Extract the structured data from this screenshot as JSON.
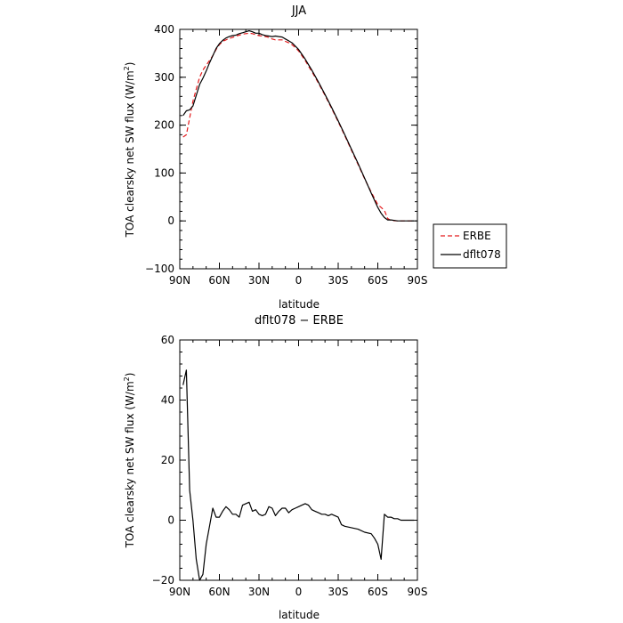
{
  "chart_data": [
    {
      "type": "line",
      "title": "JJA",
      "xlabel": "latitude",
      "ylabel": "TOA clearsky net SW flux (W/m²)",
      "ylabel_parts": {
        "main": "TOA clearsky net SW flux (W/m",
        "sup": "2",
        "close": ")"
      },
      "x_ticks": [
        "90N",
        "60N",
        "30N",
        "0",
        "30S",
        "60S",
        "90S"
      ],
      "y_ticks": [
        "−100",
        "0",
        "100",
        "200",
        "300",
        "400"
      ],
      "xlim": [
        90,
        -90
      ],
      "ylim": [
        -100,
        400
      ],
      "legend": {
        "placement": "right"
      },
      "series": [
        {
          "name": "ERBE",
          "color": "#e41a1c",
          "style": "dashed",
          "x": [
            87.5,
            85,
            82.5,
            80,
            77.5,
            75,
            72.5,
            70,
            67.5,
            65,
            62.5,
            60,
            57.5,
            55,
            52.5,
            50,
            47.5,
            45,
            42.5,
            40,
            37.5,
            35,
            32.5,
            30,
            27.5,
            25,
            22.5,
            20,
            17.5,
            15,
            12.5,
            10,
            7.5,
            5,
            2.5,
            0,
            -5,
            -10,
            -15,
            -20,
            -25,
            -30,
            -35,
            -40,
            -45,
            -50,
            -55,
            -60,
            -62.5,
            -65,
            -67.5,
            -70,
            -75,
            -80,
            -85,
            -87.5
          ],
          "values": [
            175,
            180,
            215,
            250,
            275,
            300,
            315,
            325,
            335,
            345,
            358,
            368,
            375,
            378,
            381,
            383,
            386,
            388,
            390,
            391,
            392,
            391,
            389,
            387,
            386,
            385,
            383,
            380,
            378,
            378,
            378,
            375,
            372,
            368,
            362,
            355,
            335,
            312,
            288,
            262,
            235,
            207,
            178,
            148,
            118,
            88,
            60,
            34,
            28,
            22,
            5,
            1,
            0,
            0,
            0,
            0
          ]
        },
        {
          "name": "dflt078",
          "color": "#000000",
          "style": "solid",
          "x": [
            87.5,
            85,
            82.5,
            80,
            77.5,
            75,
            72.5,
            70,
            67.5,
            65,
            62.5,
            60,
            57.5,
            55,
            52.5,
            50,
            47.5,
            45,
            42.5,
            40,
            37.5,
            35,
            32.5,
            30,
            27.5,
            25,
            22.5,
            20,
            17.5,
            15,
            12.5,
            10,
            7.5,
            5,
            2.5,
            0,
            -5,
            -10,
            -15,
            -20,
            -25,
            -30,
            -35,
            -40,
            -45,
            -50,
            -55,
            -60,
            -62.5,
            -65,
            -67.5,
            -70,
            -75,
            -80,
            -85,
            -87.5
          ],
          "values": [
            220,
            230,
            232,
            240,
            262,
            285,
            298,
            313,
            330,
            345,
            360,
            370,
            377,
            382,
            385,
            387,
            388,
            391,
            393,
            395,
            397,
            395,
            392,
            392,
            389,
            387,
            386,
            385,
            386,
            385,
            384,
            380,
            376,
            372,
            365,
            358,
            338,
            315,
            290,
            264,
            237,
            209,
            180,
            150,
            120,
            89,
            58,
            28,
            16,
            7,
            2,
            2,
            0,
            0,
            0,
            0
          ]
        }
      ]
    },
    {
      "type": "line",
      "title": "dflt078 − ERBE",
      "xlabel": "latitude",
      "ylabel": "TOA clearsky net SW flux (W/m²)",
      "ylabel_parts": {
        "main": "TOA clearsky net SW flux (W/m",
        "sup": "2",
        "close": ")"
      },
      "x_ticks": [
        "90N",
        "60N",
        "30N",
        "0",
        "30S",
        "60S",
        "90S"
      ],
      "y_ticks": [
        "−20",
        "0",
        "20",
        "40",
        "60"
      ],
      "xlim": [
        90,
        -90
      ],
      "ylim": [
        -20,
        60
      ],
      "series": [
        {
          "name": "",
          "color": "#000000",
          "style": "solid",
          "x": [
            87.5,
            85,
            82.5,
            80,
            77.5,
            75,
            72.5,
            70,
            67.5,
            65,
            62.5,
            60,
            57.5,
            55,
            52.5,
            50,
            47.5,
            45,
            42.5,
            40,
            37.5,
            35,
            32.5,
            30,
            27.5,
            25,
            22.5,
            20,
            17.5,
            15,
            12.5,
            10,
            7.5,
            5,
            2.5,
            0,
            -2.5,
            -5,
            -7.5,
            -10,
            -12.5,
            -15,
            -17.5,
            -20,
            -22.5,
            -25,
            -27.5,
            -30,
            -32.5,
            -35,
            -40,
            -45,
            -50,
            -55,
            -57.5,
            -60,
            -62.5,
            -65,
            -67.5,
            -70,
            -72.5,
            -75,
            -77.5,
            -80,
            -82.5,
            -85,
            -87.5
          ],
          "values": [
            45,
            50,
            10,
            0,
            -13,
            -20,
            -18,
            -8,
            -2,
            4,
            1,
            1,
            3,
            4.5,
            3.5,
            2,
            2,
            1,
            5,
            5.5,
            6,
            3,
            3.5,
            2,
            1.5,
            2,
            4.5,
            4,
            1.5,
            3,
            4,
            4,
            2.5,
            3.5,
            4,
            4.5,
            5,
            5.5,
            5,
            3.5,
            3,
            2.5,
            2,
            2,
            1.5,
            2,
            1.5,
            1,
            -1.5,
            -2,
            -2.5,
            -3,
            -4,
            -4.5,
            -6,
            -8,
            -13,
            2,
            1,
            1,
            0.5,
            0.5,
            0,
            0,
            0,
            0,
            0
          ]
        }
      ]
    }
  ]
}
